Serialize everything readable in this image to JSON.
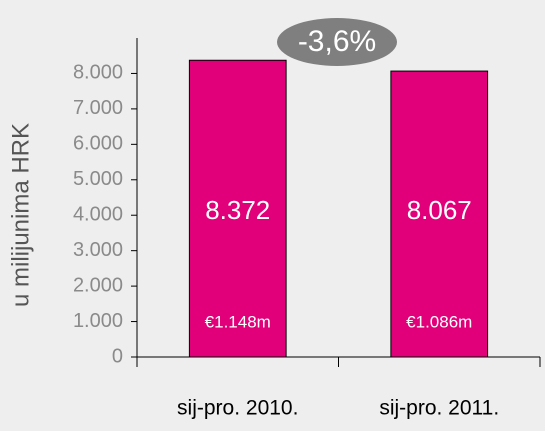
{
  "chart_data": {
    "type": "bar",
    "ylabel": "u milijunima HRK",
    "annotation": "-3,6%",
    "categories": [
      "sij-pro. 2010.",
      "sij-pro. 2011."
    ],
    "values": [
      8372,
      8067
    ],
    "value_labels": [
      "8.372",
      "8.067"
    ],
    "bar_annotations": [
      "€1.148m",
      "€1.086m"
    ],
    "color": "#e2007a",
    "ylim": [
      0,
      9000
    ],
    "yticks": [
      0,
      {
        "value": 1000,
        "label": "1.000"
      },
      {
        "value": 2000,
        "label": "2.000"
      },
      {
        "value": 3000,
        "label": "3.000"
      },
      {
        "value": 4000,
        "label": "4.000"
      },
      {
        "value": 5000,
        "label": "5.000"
      },
      {
        "value": 6000,
        "label": "6.000"
      },
      {
        "value": 7000,
        "label": "7.000"
      },
      {
        "value": 8000,
        "label": "8.000"
      }
    ],
    "grid": false
  }
}
